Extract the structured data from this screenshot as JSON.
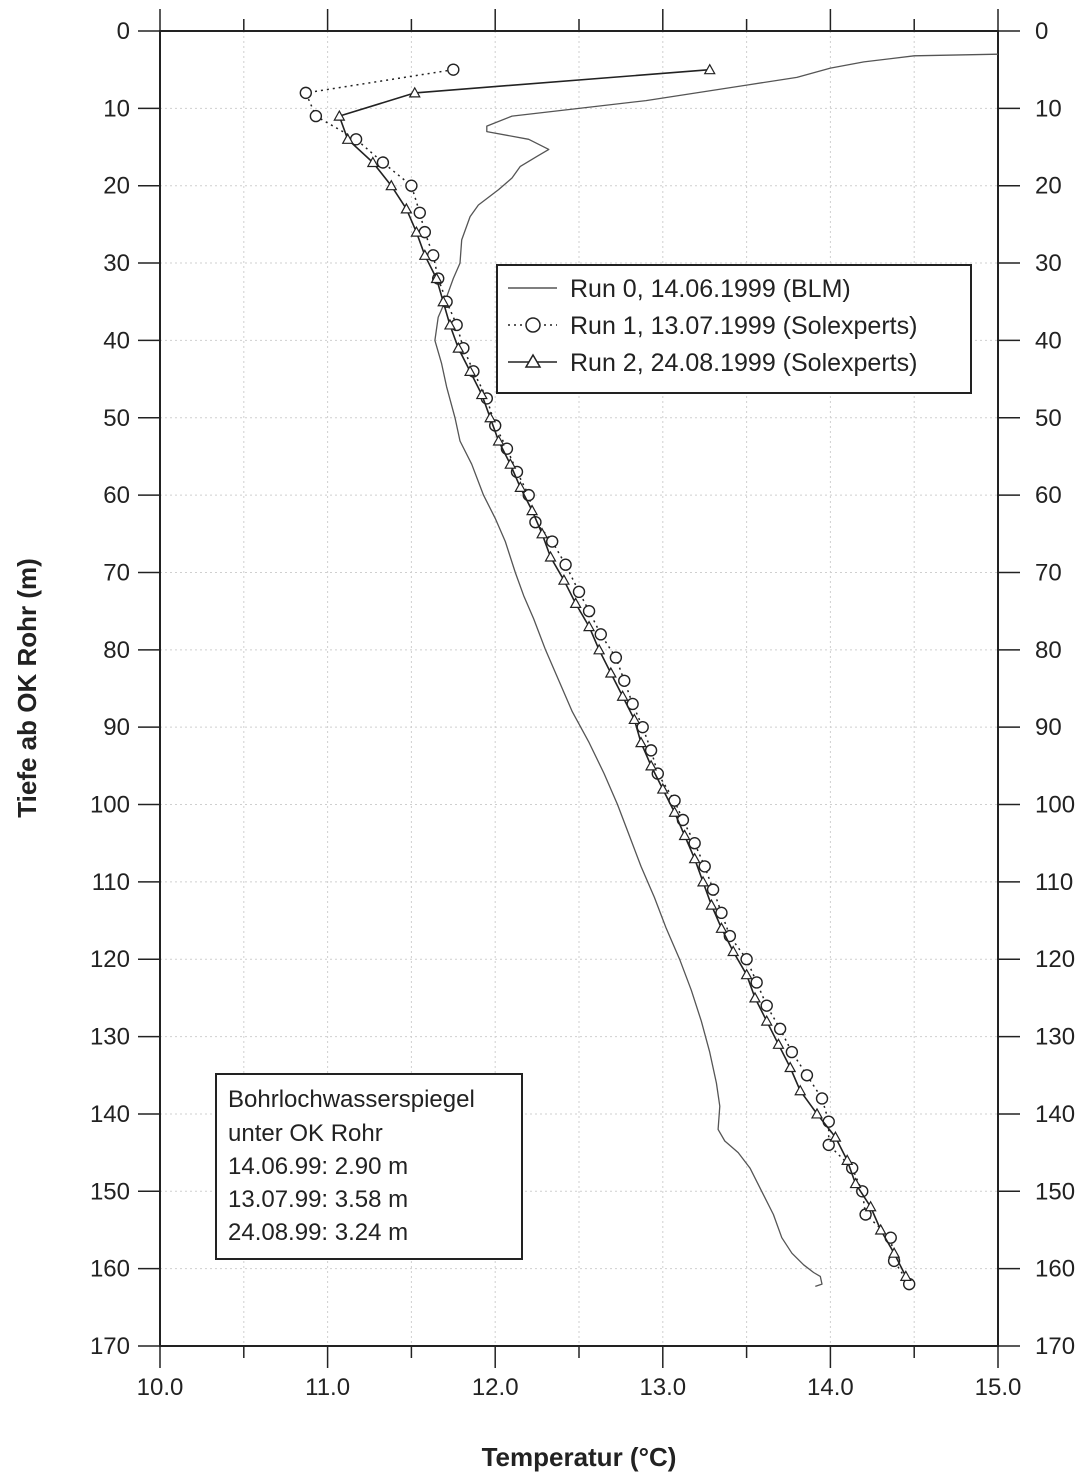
{
  "chart_data": {
    "type": "line",
    "xlabel": "Temperatur (°C)",
    "ylabel": "Tiefe ab OK Rohr (m)",
    "xlim": [
      10.0,
      15.0
    ],
    "ylim": [
      0,
      170
    ],
    "y_inverted": true,
    "grid": true,
    "legend_placement": "upper-right",
    "x_ticks": [
      "10.0",
      "11.0",
      "12.0",
      "13.0",
      "14.0",
      "15.0"
    ],
    "y_ticks": [
      "0",
      "10",
      "20",
      "30",
      "40",
      "50",
      "60",
      "70",
      "80",
      "90",
      "100",
      "110",
      "120",
      "130",
      "140",
      "150",
      "160",
      "170"
    ],
    "series": [
      {
        "name": "Run 0, 14.06.1999 (BLM)",
        "style": "solid-thin",
        "color": "#555555",
        "points": [
          [
            15.0,
            3
          ],
          [
            14.5,
            3.2
          ],
          [
            14.2,
            4
          ],
          [
            14.0,
            4.8
          ],
          [
            13.8,
            6
          ],
          [
            13.5,
            7
          ],
          [
            13.2,
            8
          ],
          [
            12.9,
            9
          ],
          [
            12.5,
            10
          ],
          [
            12.1,
            11
          ],
          [
            11.95,
            12.3
          ],
          [
            11.95,
            13
          ],
          [
            12.2,
            14
          ],
          [
            12.32,
            15.3
          ],
          [
            12.25,
            16.2
          ],
          [
            12.15,
            17.5
          ],
          [
            12.1,
            19
          ],
          [
            12.02,
            20.5
          ],
          [
            11.9,
            22.5
          ],
          [
            11.85,
            24
          ],
          [
            11.8,
            27
          ],
          [
            11.79,
            30
          ],
          [
            11.75,
            32
          ],
          [
            11.7,
            35
          ],
          [
            11.66,
            37
          ],
          [
            11.64,
            40
          ],
          [
            11.68,
            43
          ],
          [
            11.71,
            46
          ],
          [
            11.76,
            50
          ],
          [
            11.79,
            53
          ],
          [
            11.86,
            56
          ],
          [
            11.93,
            60
          ],
          [
            12.0,
            63
          ],
          [
            12.06,
            66
          ],
          [
            12.12,
            70
          ],
          [
            12.17,
            73
          ],
          [
            12.23,
            76
          ],
          [
            12.3,
            80
          ],
          [
            12.38,
            84
          ],
          [
            12.46,
            88
          ],
          [
            12.56,
            92
          ],
          [
            12.65,
            96
          ],
          [
            12.73,
            100
          ],
          [
            12.8,
            104
          ],
          [
            12.87,
            108
          ],
          [
            12.95,
            112
          ],
          [
            13.02,
            116
          ],
          [
            13.1,
            120
          ],
          [
            13.17,
            124
          ],
          [
            13.23,
            128
          ],
          [
            13.28,
            132
          ],
          [
            13.32,
            136
          ],
          [
            13.34,
            139
          ],
          [
            13.33,
            142
          ],
          [
            13.37,
            143.5
          ],
          [
            13.45,
            145
          ],
          [
            13.52,
            147
          ],
          [
            13.59,
            150
          ],
          [
            13.66,
            153
          ],
          [
            13.71,
            156
          ],
          [
            13.77,
            158
          ],
          [
            13.84,
            159.5
          ],
          [
            13.9,
            160.5
          ],
          [
            13.94,
            161
          ],
          [
            13.95,
            162
          ],
          [
            13.91,
            162.3
          ]
        ]
      },
      {
        "name": "Run 1, 13.07.1999 (Solexperts)",
        "style": "dotted-circles",
        "color": "#222222",
        "points": [
          [
            11.75,
            5
          ],
          [
            10.87,
            8
          ],
          [
            10.93,
            11
          ],
          [
            11.17,
            14
          ],
          [
            11.33,
            17
          ],
          [
            11.5,
            20
          ],
          [
            11.55,
            23.5
          ],
          [
            11.58,
            26
          ],
          [
            11.63,
            29
          ],
          [
            11.66,
            32
          ],
          [
            11.71,
            35
          ],
          [
            11.77,
            38
          ],
          [
            11.81,
            41
          ],
          [
            11.87,
            44
          ],
          [
            11.95,
            47.5
          ],
          [
            12.0,
            51
          ],
          [
            12.07,
            54
          ],
          [
            12.13,
            57
          ],
          [
            12.2,
            60
          ],
          [
            12.24,
            63.5
          ],
          [
            12.34,
            66
          ],
          [
            12.42,
            69
          ],
          [
            12.5,
            72.5
          ],
          [
            12.56,
            75
          ],
          [
            12.63,
            78
          ],
          [
            12.72,
            81
          ],
          [
            12.77,
            84
          ],
          [
            12.82,
            87
          ],
          [
            12.88,
            90
          ],
          [
            12.93,
            93
          ],
          [
            12.97,
            96
          ],
          [
            13.07,
            99.5
          ],
          [
            13.12,
            102
          ],
          [
            13.19,
            105
          ],
          [
            13.25,
            108
          ],
          [
            13.3,
            111
          ],
          [
            13.35,
            114
          ],
          [
            13.4,
            117
          ],
          [
            13.5,
            120
          ],
          [
            13.56,
            123
          ],
          [
            13.62,
            126
          ],
          [
            13.7,
            129
          ],
          [
            13.77,
            132
          ],
          [
            13.86,
            135
          ],
          [
            13.95,
            138
          ],
          [
            13.99,
            141
          ],
          [
            13.99,
            144
          ],
          [
            14.13,
            147
          ],
          [
            14.19,
            150
          ],
          [
            14.21,
            153
          ],
          [
            14.36,
            156
          ],
          [
            14.38,
            159
          ],
          [
            14.47,
            162
          ]
        ]
      },
      {
        "name": "Run 2, 24.08.1999 (Solexperts)",
        "style": "solid-triangles",
        "color": "#222222",
        "points": [
          [
            13.28,
            5
          ],
          [
            11.52,
            8
          ],
          [
            11.07,
            11
          ],
          [
            11.12,
            14
          ],
          [
            11.27,
            17
          ],
          [
            11.38,
            20
          ],
          [
            11.47,
            23
          ],
          [
            11.53,
            26
          ],
          [
            11.58,
            29
          ],
          [
            11.65,
            32
          ],
          [
            11.69,
            35
          ],
          [
            11.73,
            38
          ],
          [
            11.78,
            41
          ],
          [
            11.85,
            44
          ],
          [
            11.92,
            47
          ],
          [
            11.97,
            50
          ],
          [
            12.02,
            53
          ],
          [
            12.09,
            56
          ],
          [
            12.15,
            59
          ],
          [
            12.22,
            62
          ],
          [
            12.28,
            65
          ],
          [
            12.33,
            68
          ],
          [
            12.41,
            71
          ],
          [
            12.48,
            74
          ],
          [
            12.56,
            77
          ],
          [
            12.62,
            80
          ],
          [
            12.69,
            83
          ],
          [
            12.76,
            86
          ],
          [
            12.83,
            89
          ],
          [
            12.87,
            92
          ],
          [
            12.93,
            95
          ],
          [
            13.0,
            98
          ],
          [
            13.07,
            101
          ],
          [
            13.13,
            104
          ],
          [
            13.19,
            107
          ],
          [
            13.24,
            110
          ],
          [
            13.29,
            113
          ],
          [
            13.35,
            116
          ],
          [
            13.42,
            119
          ],
          [
            13.5,
            122
          ],
          [
            13.55,
            125
          ],
          [
            13.62,
            128
          ],
          [
            13.69,
            131
          ],
          [
            13.76,
            134
          ],
          [
            13.82,
            137
          ],
          [
            13.92,
            140
          ],
          [
            14.03,
            143
          ],
          [
            14.1,
            146
          ],
          [
            14.15,
            149
          ],
          [
            14.24,
            152
          ],
          [
            14.3,
            155
          ],
          [
            14.38,
            158
          ],
          [
            14.45,
            161
          ]
        ]
      }
    ],
    "annotation": {
      "lines": [
        "Bohrlochwasserspiegel",
        "unter OK Rohr",
        "14.06.99: 2.90 m",
        "13.07.99: 3.58 m",
        "24.08.99: 3.24 m"
      ]
    }
  }
}
